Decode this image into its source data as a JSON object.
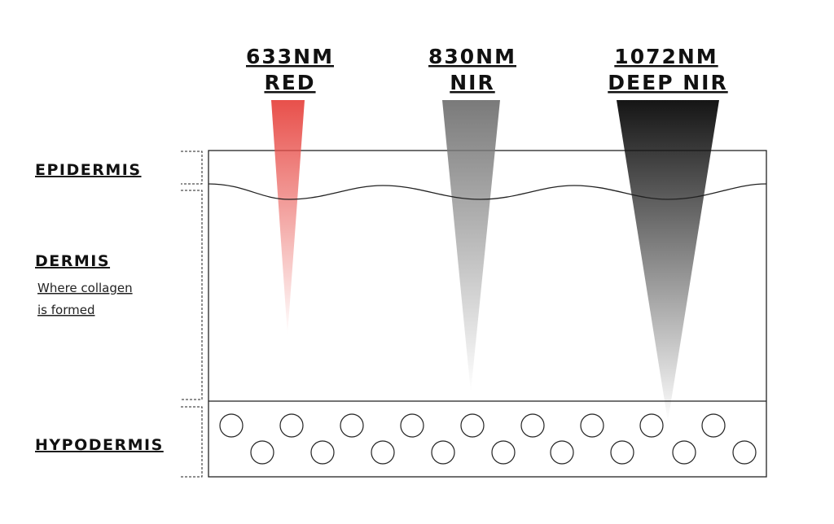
{
  "beams": [
    {
      "wavelength": "633NM",
      "name": "RED"
    },
    {
      "wavelength": "830NM",
      "name": "NIR"
    },
    {
      "wavelength": "1072NM",
      "name": "DEEP NIR"
    }
  ],
  "layers": [
    {
      "label": "EPIDERMIS"
    },
    {
      "label": "DERMIS",
      "note": [
        "Where collagen",
        "is formed"
      ]
    },
    {
      "label": "HYPODERMIS"
    }
  ]
}
